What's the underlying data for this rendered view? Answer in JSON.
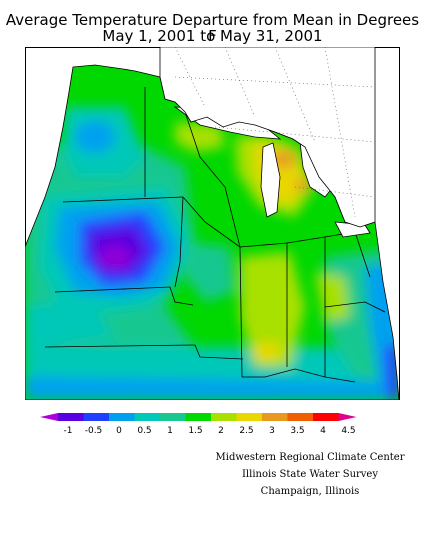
{
  "header": {
    "title_line1": "Average Temperature Departure from Mean in Degrees F",
    "title_line2": "May 1, 2001 to May 31, 2001"
  },
  "legend": {
    "units": "Degrees F",
    "ticks": [
      "-1",
      "-0.5",
      "0",
      "0.5",
      "1",
      "1.5",
      "2",
      "2.5",
      "3",
      "3.5",
      "4",
      "4.5"
    ],
    "colors": [
      "#b000d8",
      "#5a00e0",
      "#2040ff",
      "#00a0f0",
      "#00c8b8",
      "#18c890",
      "#00d800",
      "#a8e000",
      "#e8d800",
      "#e89a20",
      "#f06000",
      "#ff0000",
      "#e00090"
    ]
  },
  "map": {
    "region": "Midwest United States",
    "value_range": [
      -1,
      4.5
    ],
    "dominant_color": "#00d800"
  },
  "credits": {
    "line1": "Midwestern Regional Climate Center",
    "line2": "Illinois State Water Survey",
    "line3": "Champaign, Illinois"
  }
}
